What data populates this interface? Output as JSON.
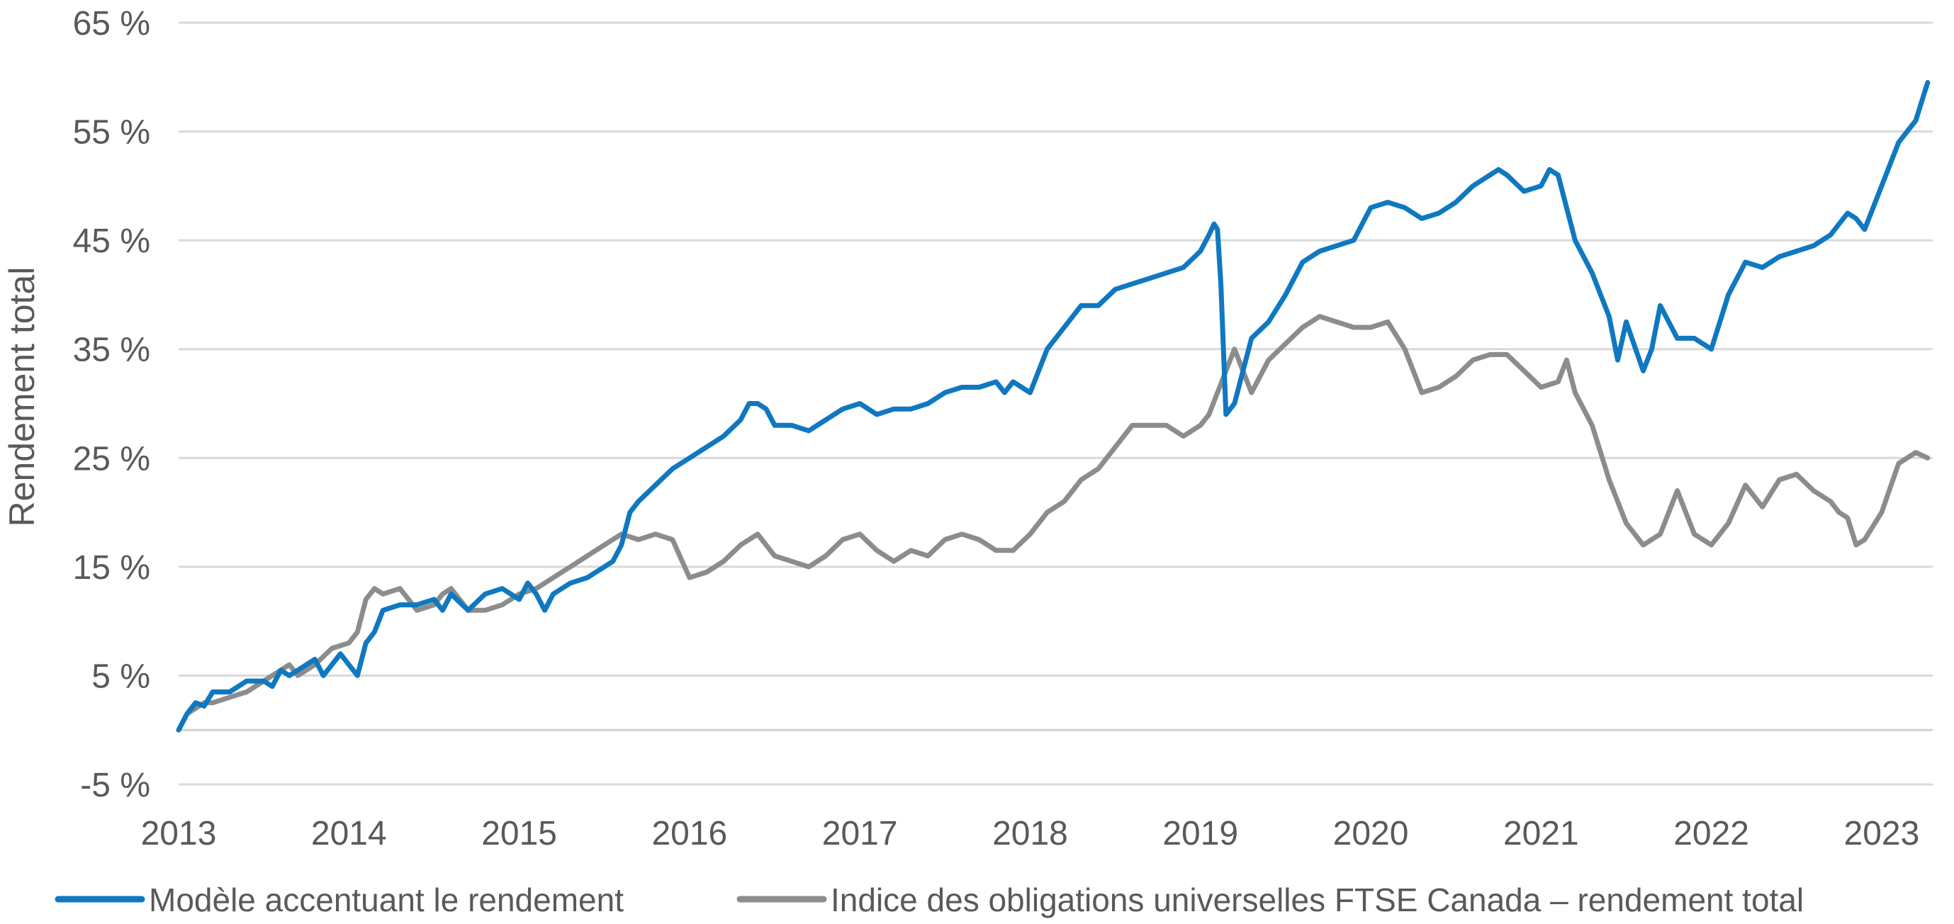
{
  "chart_data": {
    "type": "line",
    "title": "",
    "xlabel": "",
    "ylabel": "Rendement total",
    "ylim": [
      -5,
      65
    ],
    "xlim": [
      2013,
      2023.3
    ],
    "yticks": [
      -5,
      5,
      15,
      25,
      35,
      45,
      55,
      65
    ],
    "ytick_labels": [
      "-5 %",
      "5 %",
      "15 %",
      "25 %",
      "35 %",
      "45 %",
      "55 %",
      "65 %"
    ],
    "xticks": [
      2013,
      2014,
      2015,
      2016,
      2017,
      2018,
      2019,
      2020,
      2021,
      2022,
      2023
    ],
    "xtick_labels": [
      "2013",
      "2014",
      "2015",
      "2016",
      "2017",
      "2018",
      "2019",
      "2020",
      "2021",
      "2022",
      "2023"
    ],
    "grid": true,
    "legend_position": "bottom",
    "series": [
      {
        "name": "Modèle accentuant le rendement",
        "color": "#0f78c1",
        "x": [
          2013.0,
          2013.05,
          2013.1,
          2013.15,
          2013.2,
          2013.3,
          2013.4,
          2013.5,
          2013.55,
          2013.6,
          2013.65,
          2013.7,
          2013.8,
          2013.85,
          2013.9,
          2013.95,
          2014.0,
          2014.05,
          2014.1,
          2014.15,
          2014.2,
          2014.3,
          2014.4,
          2014.5,
          2014.55,
          2014.6,
          2014.7,
          2014.8,
          2014.9,
          2015.0,
          2015.05,
          2015.1,
          2015.15,
          2015.2,
          2015.3,
          2015.4,
          2015.5,
          2015.55,
          2015.6,
          2015.65,
          2015.7,
          2015.8,
          2015.9,
          2016.0,
          2016.1,
          2016.2,
          2016.3,
          2016.35,
          2016.4,
          2016.45,
          2016.5,
          2016.6,
          2016.7,
          2016.8,
          2016.9,
          2017.0,
          2017.1,
          2017.2,
          2017.3,
          2017.4,
          2017.5,
          2017.6,
          2017.7,
          2017.8,
          2017.85,
          2017.9,
          2017.95,
          2018.0,
          2018.1,
          2018.2,
          2018.3,
          2018.4,
          2018.5,
          2018.6,
          2018.7,
          2018.8,
          2018.9,
          2019.0,
          2019.05,
          2019.08,
          2019.1,
          2019.12,
          2019.15,
          2019.2,
          2019.3,
          2019.4,
          2019.5,
          2019.6,
          2019.7,
          2019.8,
          2019.9,
          2020.0,
          2020.1,
          2020.2,
          2020.3,
          2020.4,
          2020.5,
          2020.6,
          2020.7,
          2020.75,
          2020.8,
          2020.9,
          2021.0,
          2021.05,
          2021.1,
          2021.15,
          2021.2,
          2021.3,
          2021.4,
          2021.45,
          2021.5,
          2021.6,
          2021.65,
          2021.7,
          2021.8,
          2021.9,
          2022.0,
          2022.1,
          2022.2,
          2022.3,
          2022.4,
          2022.5,
          2022.6,
          2022.7,
          2022.75,
          2022.8,
          2022.85,
          2022.9,
          2023.0,
          2023.1,
          2023.2,
          2023.27
        ],
        "y": [
          0,
          1.5,
          2.5,
          2.2,
          3.5,
          3.5,
          4.5,
          4.5,
          4.0,
          5.5,
          5.0,
          5.5,
          6.5,
          5.0,
          6.0,
          7.0,
          6.0,
          5.0,
          8.0,
          9.0,
          11.0,
          11.5,
          11.5,
          12.0,
          11.0,
          12.5,
          11.0,
          12.5,
          13.0,
          12.0,
          13.5,
          12.5,
          11.0,
          12.5,
          13.5,
          14.0,
          15.0,
          15.5,
          17.0,
          20.0,
          21.0,
          22.5,
          24.0,
          25.0,
          26.0,
          27.0,
          28.5,
          30.0,
          30.0,
          29.5,
          28.0,
          28.0,
          27.5,
          28.5,
          29.5,
          30.0,
          29.0,
          29.5,
          29.5,
          30.0,
          31.0,
          31.5,
          31.5,
          32.0,
          31.0,
          32.0,
          31.5,
          31.0,
          35.0,
          37.0,
          39.0,
          39.0,
          40.5,
          41.0,
          41.5,
          42.0,
          42.5,
          44.0,
          45.5,
          46.5,
          46.0,
          41.0,
          29.0,
          30.0,
          36.0,
          37.5,
          40.0,
          43.0,
          44.0,
          44.5,
          45.0,
          48.0,
          48.5,
          48.0,
          47.0,
          47.5,
          48.5,
          50.0,
          51.0,
          51.5,
          51.0,
          49.5,
          50.0,
          51.5,
          51.0,
          48.0,
          45.0,
          42.0,
          38.0,
          34.0,
          37.5,
          33.0,
          35.0,
          39.0,
          36.0,
          36.0,
          35.0,
          40.0,
          43.0,
          42.5,
          43.5,
          44.0,
          44.5,
          45.5,
          46.5,
          47.5,
          47.0,
          46.0,
          50.0,
          54.0,
          56.0,
          59.5
        ]
      },
      {
        "name": "Indice des obligations universelles FTSE Canada – rendement total",
        "color": "#8c8c8c",
        "x": [
          2013.0,
          2013.05,
          2013.1,
          2013.15,
          2013.2,
          2013.3,
          2013.4,
          2013.5,
          2013.55,
          2013.6,
          2013.65,
          2013.7,
          2013.8,
          2013.9,
          2014.0,
          2014.05,
          2014.1,
          2014.15,
          2014.2,
          2014.3,
          2014.4,
          2014.5,
          2014.55,
          2014.6,
          2014.7,
          2014.8,
          2014.9,
          2015.0,
          2015.1,
          2015.2,
          2015.3,
          2015.4,
          2015.5,
          2015.6,
          2015.7,
          2015.8,
          2015.9,
          2016.0,
          2016.1,
          2016.2,
          2016.3,
          2016.4,
          2016.5,
          2016.6,
          2016.7,
          2016.8,
          2016.9,
          2017.0,
          2017.1,
          2017.2,
          2017.3,
          2017.4,
          2017.5,
          2017.6,
          2017.7,
          2017.8,
          2017.9,
          2018.0,
          2018.1,
          2018.2,
          2018.3,
          2018.4,
          2018.5,
          2018.6,
          2018.7,
          2018.8,
          2018.9,
          2019.0,
          2019.05,
          2019.1,
          2019.15,
          2019.2,
          2019.3,
          2019.4,
          2019.5,
          2019.6,
          2019.7,
          2019.8,
          2019.9,
          2020.0,
          2020.1,
          2020.2,
          2020.3,
          2020.4,
          2020.5,
          2020.6,
          2020.7,
          2020.8,
          2020.9,
          2021.0,
          2021.1,
          2021.15,
          2021.2,
          2021.3,
          2021.4,
          2021.5,
          2021.6,
          2021.7,
          2021.8,
          2021.9,
          2022.0,
          2022.1,
          2022.2,
          2022.3,
          2022.4,
          2022.5,
          2022.6,
          2022.7,
          2022.75,
          2022.8,
          2022.85,
          2022.9,
          2023.0,
          2023.1,
          2023.2,
          2023.27
        ],
        "y": [
          0,
          1.5,
          2.0,
          2.5,
          2.5,
          3.0,
          3.5,
          4.5,
          5.0,
          5.5,
          6.0,
          5.0,
          6.0,
          7.5,
          8.0,
          9.0,
          12.0,
          13.0,
          12.5,
          13.0,
          11.0,
          11.5,
          12.5,
          13.0,
          11.0,
          11.0,
          11.5,
          12.5,
          13.0,
          14.0,
          15.0,
          16.0,
          17.0,
          18.0,
          17.5,
          18.0,
          17.5,
          14.0,
          14.5,
          15.5,
          17.0,
          18.0,
          16.0,
          15.5,
          15.0,
          16.0,
          17.5,
          18.0,
          16.5,
          15.5,
          16.5,
          16.0,
          17.5,
          18.0,
          17.5,
          16.5,
          16.5,
          18.0,
          20.0,
          21.0,
          23.0,
          24.0,
          26.0,
          28.0,
          28.0,
          28.0,
          27.0,
          28.0,
          29.0,
          31.0,
          33.0,
          35.0,
          31.0,
          34.0,
          35.5,
          37.0,
          38.0,
          37.5,
          37.0,
          37.0,
          37.5,
          35.0,
          31.0,
          31.5,
          32.5,
          34.0,
          34.5,
          34.5,
          33.0,
          31.5,
          32.0,
          34.0,
          31.0,
          28.0,
          23.0,
          19.0,
          17.0,
          18.0,
          22.0,
          18.0,
          17.0,
          19.0,
          22.5,
          20.5,
          23.0,
          23.5,
          22.0,
          21.0,
          20.0,
          19.5,
          17.0,
          17.5,
          20.0,
          24.5,
          25.5,
          25.0
        ]
      }
    ]
  }
}
